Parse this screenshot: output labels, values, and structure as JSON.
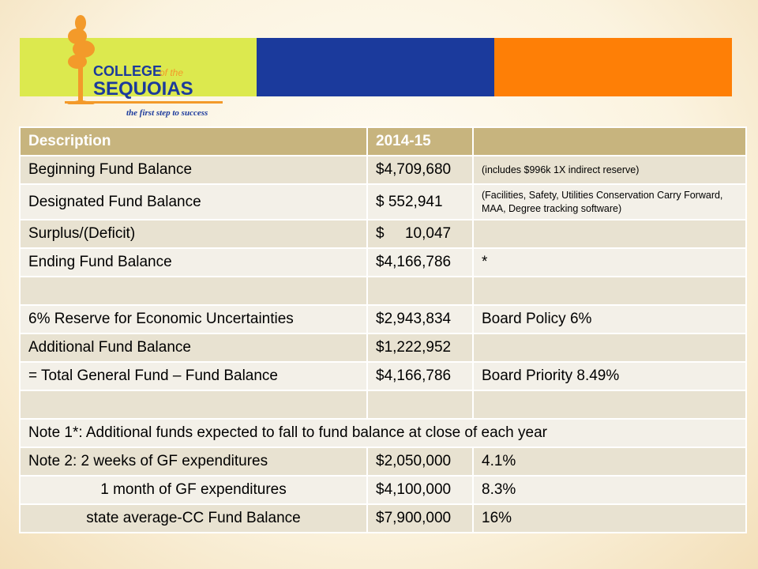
{
  "logo": {
    "line1": "COLLEGE",
    "line1b": "of the",
    "line2": "SEQUOIAS",
    "tagline": "the first step to success"
  },
  "table": {
    "header": [
      "Description",
      "2014-15"
    ],
    "rows": [
      [
        "Beginning Fund Balance",
        "$4,709,680",
        "(includes $996k 1X indirect reserve)"
      ],
      [
        "Designated Fund Balance",
        "$ 552,941",
        "(Facilities, Safety, Utilities Conservation Carry Forward, MAA, Degree tracking software)"
      ],
      [
        "Surplus/(Deficit)",
        "$     10,047"
      ],
      [
        "Ending Fund Balance",
        "$4,166,786",
        "*"
      ],
      [],
      [
        "6% Reserve for Economic Uncertainties",
        "$2,943,834",
        "Board Policy 6%"
      ],
      [
        "Additional Fund Balance",
        "$1,222,952"
      ],
      [
        "= Total General Fund – Fund Balance",
        "$4,166,786",
        "Board Priority 8.49%"
      ],
      [],
      [
        "Note 1*: Additional funds expected to fall to fund balance at close of each year"
      ],
      [
        "Note 2: 2 weeks of GF expenditures",
        "$2,050,000",
        "4.1%"
      ],
      [
        "1 month of GF expenditures",
        "$4,100,000",
        "8.3%"
      ],
      [
        "state average-CC Fund Balance",
        "$7,900,000",
        "16%"
      ]
    ]
  }
}
